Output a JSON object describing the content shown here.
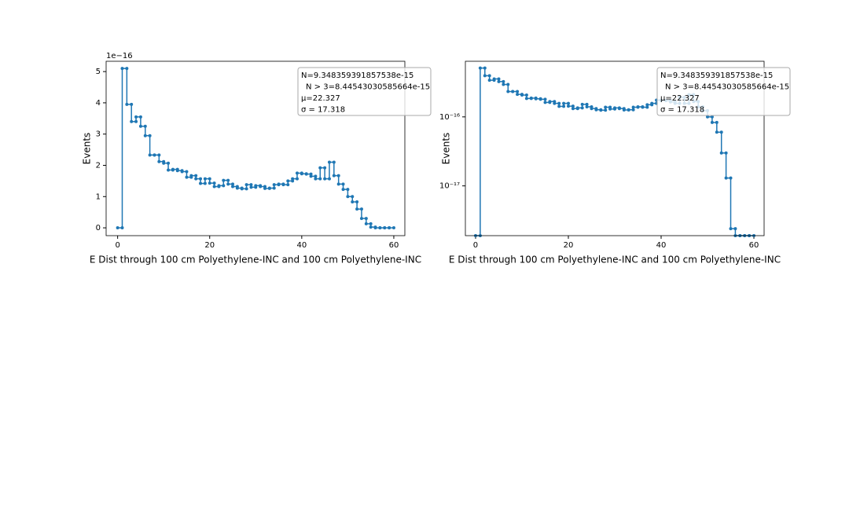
{
  "chart_data": [
    {
      "type": "step",
      "xlabel": "E Dist through 100 cm Polyethylene-INC and 100 cm Polyethylene-INC",
      "ylabel": "Events",
      "offset_label": "1e−16",
      "color": "#1f77b4",
      "log_y": false,
      "x": [
        0,
        1,
        2,
        3,
        4,
        5,
        6,
        7,
        8,
        9,
        10,
        11,
        12,
        13,
        14,
        15,
        16,
        17,
        18,
        19,
        20,
        21,
        22,
        23,
        24,
        25,
        26,
        27,
        28,
        29,
        30,
        31,
        32,
        33,
        34,
        35,
        36,
        37,
        38,
        39,
        40,
        41,
        42,
        43,
        44,
        45,
        46,
        47,
        48,
        49,
        50,
        51,
        52,
        53,
        54,
        55,
        56,
        57,
        58,
        59
      ],
      "values": [
        0,
        5.1,
        3.95,
        3.4,
        3.55,
        3.25,
        2.95,
        2.33,
        2.33,
        2.12,
        2.07,
        1.85,
        1.87,
        1.83,
        1.8,
        1.62,
        1.67,
        1.57,
        1.42,
        1.57,
        1.43,
        1.32,
        1.35,
        1.52,
        1.4,
        1.32,
        1.27,
        1.25,
        1.38,
        1.3,
        1.35,
        1.32,
        1.26,
        1.27,
        1.38,
        1.4,
        1.38,
        1.5,
        1.57,
        1.75,
        1.73,
        1.72,
        1.65,
        1.57,
        1.92,
        1.57,
        2.1,
        1.67,
        1.4,
        1.23,
        1.0,
        0.83,
        0.6,
        0.3,
        0.13,
        0.024,
        0,
        0,
        0,
        0
      ],
      "xlim": [
        -2.5,
        62.4
      ],
      "ylim": [
        -0.25,
        5.33
      ],
      "xticks": [
        0,
        20,
        40,
        60
      ],
      "yticks": [
        0,
        1,
        2,
        3,
        4,
        5
      ],
      "annotations": [
        "N=9.348359391857538e-15",
        "N > 3=8.44543030585664e-15",
        "μ=22.327",
        "σ = 17.318"
      ]
    },
    {
      "type": "step",
      "xlabel": "E Dist through 100 cm Polyethylene-INC and 100 cm Polyethylene-INC",
      "ylabel": "Events",
      "color": "#1f77b4",
      "log_y": true,
      "x": [
        0,
        1,
        2,
        3,
        4,
        5,
        6,
        7,
        8,
        9,
        10,
        11,
        12,
        13,
        14,
        15,
        16,
        17,
        18,
        19,
        20,
        21,
        22,
        23,
        24,
        25,
        26,
        27,
        28,
        29,
        30,
        31,
        32,
        33,
        34,
        35,
        36,
        37,
        38,
        39,
        40,
        41,
        42,
        43,
        44,
        45,
        46,
        47,
        48,
        49,
        50,
        51,
        52,
        53,
        54,
        55,
        56,
        57,
        58,
        59
      ],
      "values": [
        0,
        5.1e-16,
        3.95e-16,
        3.4e-16,
        3.55e-16,
        3.25e-16,
        2.95e-16,
        2.33e-16,
        2.33e-16,
        2.12e-16,
        2.07e-16,
        1.85e-16,
        1.87e-16,
        1.83e-16,
        1.8e-16,
        1.62e-16,
        1.67e-16,
        1.57e-16,
        1.42e-16,
        1.57e-16,
        1.43e-16,
        1.32e-16,
        1.35e-16,
        1.52e-16,
        1.4e-16,
        1.32e-16,
        1.27e-16,
        1.25e-16,
        1.38e-16,
        1.3e-16,
        1.35e-16,
        1.32e-16,
        1.26e-16,
        1.27e-16,
        1.38e-16,
        1.4e-16,
        1.38e-16,
        1.5e-16,
        1.57e-16,
        1.75e-16,
        1.73e-16,
        1.72e-16,
        1.65e-16,
        1.57e-16,
        1.92e-16,
        1.57e-16,
        2.1e-16,
        1.67e-16,
        1.4e-16,
        1.23e-16,
        1e-16,
        8.3e-17,
        6e-17,
        3e-17,
        1.3e-17,
        2.4e-18,
        0,
        0,
        0,
        0
      ],
      "xlim": [
        -2.2,
        62.2
      ],
      "ylim": [
        1.9e-18,
        6.4e-16
      ],
      "xticks": [
        0,
        20,
        40,
        60
      ],
      "yticks": [
        {
          "value": 1e-17,
          "label": "10⁻¹⁷"
        },
        {
          "value": 1e-16,
          "label": "10⁻¹⁶"
        }
      ],
      "annotations": [
        "N=9.348359391857538e-15",
        "N > 3=8.44543030585664e-15",
        "μ=22.327",
        "σ = 17.318"
      ]
    }
  ]
}
